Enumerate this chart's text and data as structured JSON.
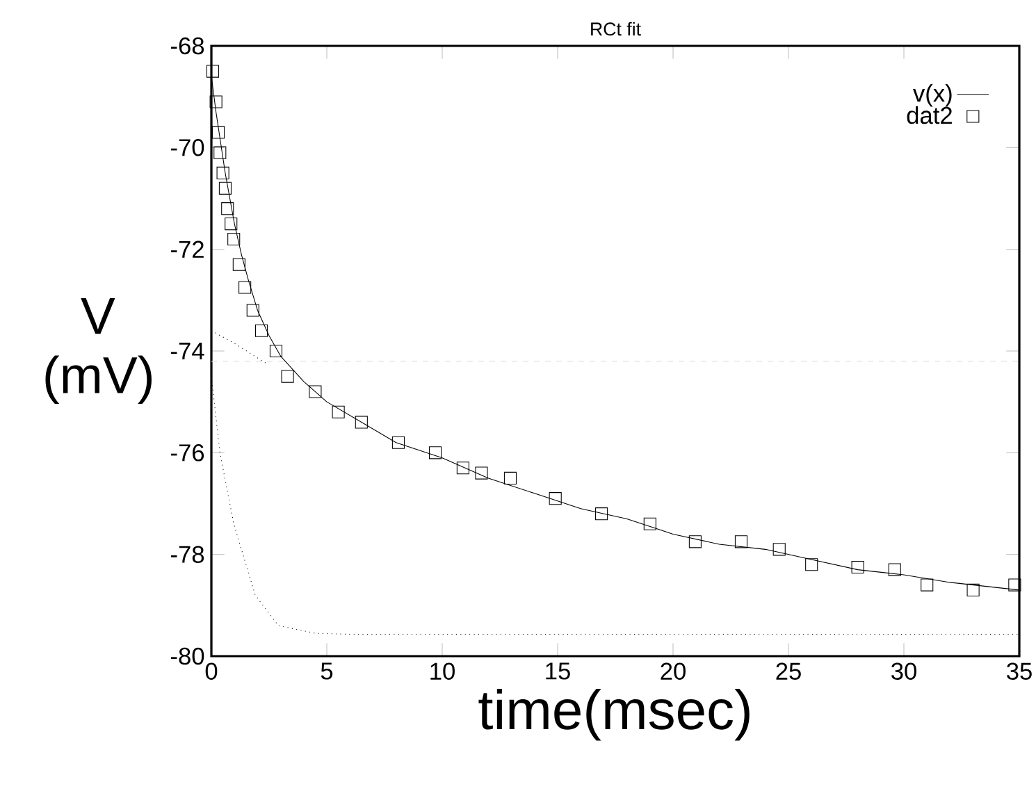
{
  "chart_data": {
    "type": "line",
    "title": "RCt fit",
    "xlabel": "time(msec)",
    "ylabel": "V (mV)",
    "xlim": [
      0,
      35
    ],
    "xticks": [
      0,
      5,
      10,
      15,
      20,
      25,
      30,
      35
    ],
    "ylim": [
      -80,
      -68
    ],
    "yticks": [
      -80,
      -78,
      -76,
      -74,
      -72,
      -70,
      -68
    ],
    "grid": false,
    "legend": "top right",
    "ref_lines": [
      {
        "axis": "y",
        "value": -74.2,
        "color": "#e0e0e0",
        "line_style": "dashed"
      }
    ],
    "series": [
      {
        "name": "v(x)",
        "color": "#000000",
        "line_style": "solid",
        "x": [
          0,
          0.2,
          0.4,
          0.6,
          0.8,
          1.0,
          1.3,
          1.6,
          2.0,
          2.5,
          3.0,
          4.0,
          5.0,
          6.5,
          8.0,
          10,
          12,
          14,
          16,
          18,
          20,
          22,
          24,
          26,
          28,
          30,
          32,
          35
        ],
        "values": [
          -68.6,
          -69.3,
          -69.9,
          -70.5,
          -71.0,
          -71.5,
          -72.1,
          -72.6,
          -73.2,
          -73.7,
          -74.1,
          -74.6,
          -75.0,
          -75.4,
          -75.8,
          -76.1,
          -76.5,
          -76.8,
          -77.1,
          -77.3,
          -77.6,
          -77.8,
          -77.9,
          -78.1,
          -78.3,
          -78.4,
          -78.55,
          -78.7
        ]
      },
      {
        "name": "dat2",
        "type": "scatter",
        "marker": "square",
        "color": "#000000",
        "x": [
          0.06,
          0.2,
          0.3,
          0.37,
          0.5,
          0.6,
          0.7,
          0.85,
          0.97,
          1.2,
          1.45,
          1.8,
          2.17,
          2.8,
          3.3,
          4.5,
          5.5,
          6.5,
          8.1,
          9.7,
          10.9,
          11.7,
          12.95,
          14.9,
          16.9,
          19.0,
          20.96,
          22.95,
          24.6,
          26.0,
          28.0,
          29.6,
          31.0,
          33.0,
          34.8
        ],
        "values": [
          -68.5,
          -69.1,
          -69.7,
          -70.1,
          -70.5,
          -70.8,
          -71.2,
          -71.5,
          -71.8,
          -72.3,
          -72.75,
          -73.2,
          -73.6,
          -74.0,
          -74.5,
          -74.8,
          -75.2,
          -75.4,
          -75.8,
          -76.0,
          -76.3,
          -76.4,
          -76.5,
          -76.9,
          -77.2,
          -77.4,
          -77.75,
          -77.75,
          -77.9,
          -78.2,
          -78.25,
          -78.3,
          -78.6,
          -78.7,
          -78.6
        ]
      },
      {
        "color": "#000000",
        "line_style": "dotted",
        "x": [
          0,
          0.37,
          0.97,
          1.9,
          2.9,
          4.5,
          6,
          10,
          20,
          35
        ],
        "values": [
          -74.5,
          -76.0,
          -77.4,
          -78.8,
          -79.4,
          -79.55,
          -79.57,
          -79.57,
          -79.57,
          -79.57
        ]
      },
      {
        "color": "#000000",
        "line_style": "dotted",
        "x": [
          0,
          1.0,
          2.4
        ],
        "values": [
          -73.6,
          -73.85,
          -74.25
        ]
      }
    ]
  }
}
